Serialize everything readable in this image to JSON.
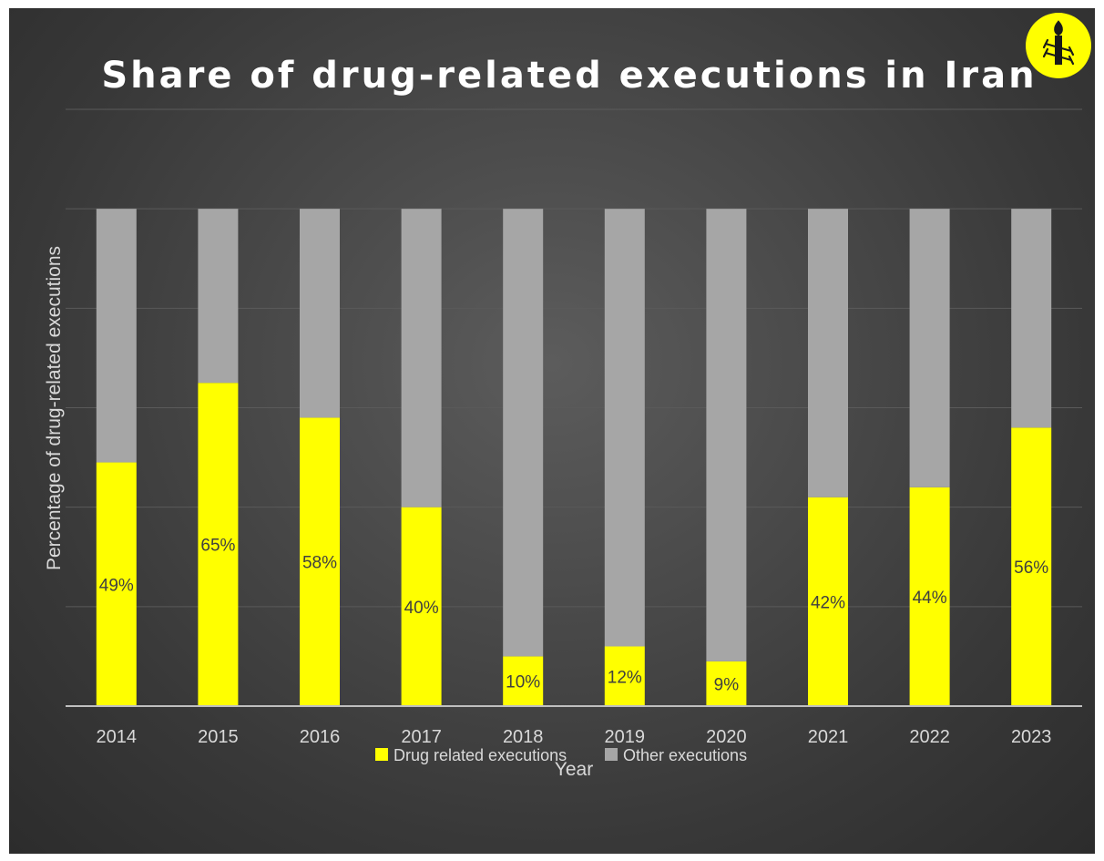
{
  "chart_data": {
    "type": "bar",
    "stacked": true,
    "title": "Share of drug-related executions in Iran",
    "xlabel": "Year",
    "ylabel": "Percentage of drug-related executions",
    "categories": [
      "2014",
      "2015",
      "2016",
      "2017",
      "2018",
      "2019",
      "2020",
      "2021",
      "2022",
      "2023"
    ],
    "series": [
      {
        "name": "Drug related executions",
        "color": "#ffff00",
        "values": [
          49,
          65,
          58,
          40,
          10,
          12,
          9,
          42,
          44,
          56
        ]
      },
      {
        "name": "Other executions",
        "color": "#a6a6a6",
        "values": [
          51,
          35,
          42,
          60,
          90,
          88,
          91,
          58,
          56,
          44
        ]
      }
    ],
    "data_labels": [
      "49%",
      "65%",
      "58%",
      "40%",
      "10%",
      "12%",
      "9%",
      "42%",
      "44%",
      "56%"
    ],
    "ylim": [
      0,
      120
    ],
    "grid": true,
    "legend": "bottom"
  },
  "colors": {
    "background": "#404040",
    "gridline": "#5a5a5a",
    "axis": "#bfbfbf",
    "logo_circle": "#ffff00"
  },
  "logo": {
    "icon": "candle-in-barbed-wire-icon"
  }
}
